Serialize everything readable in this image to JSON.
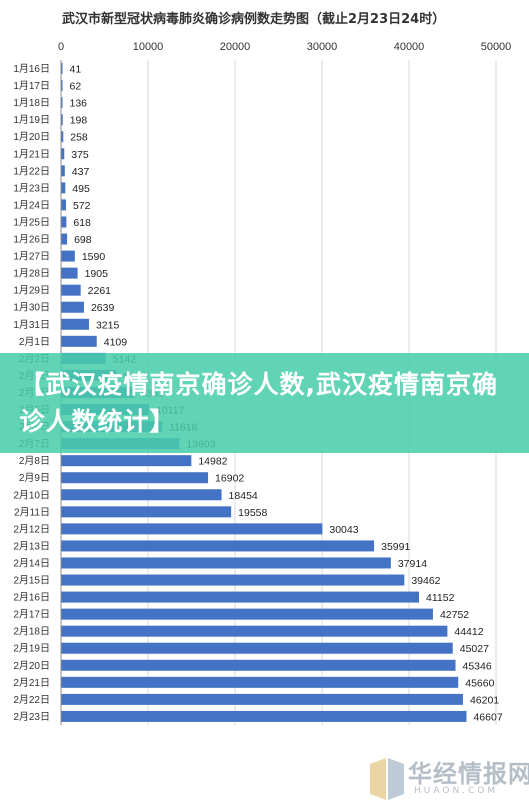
{
  "chart_data": {
    "type": "bar",
    "orientation": "horizontal",
    "title": "武汉市新型冠状病毒肺炎确诊病例数走势图（截止2月23日24时）",
    "xlim": [
      0,
      50000
    ],
    "x_ticks": [
      "0",
      "10000",
      "20000",
      "30000",
      "40000",
      "50000"
    ],
    "grid": true,
    "bar_color": "#4472c4",
    "categories": [
      "1月16日",
      "1月17日",
      "1月18日",
      "1月19日",
      "1月20日",
      "1月21日",
      "1月22日",
      "1月23日",
      "1月24日",
      "1月25日",
      "1月26日",
      "1月27日",
      "1月28日",
      "1月29日",
      "1月30日",
      "1月31日",
      "2月1日",
      "2月2日",
      "2月3日",
      "2月4日",
      "2月5日",
      "2月6日",
      "2月7日",
      "2月8日",
      "2月9日",
      "2月10日",
      "2月11日",
      "2月12日",
      "2月13日",
      "2月14日",
      "2月15日",
      "2月16日",
      "2月17日",
      "2月18日",
      "2月19日",
      "2月20日",
      "2月21日",
      "2月22日",
      "2月23日"
    ],
    "values": [
      41,
      62,
      136,
      198,
      258,
      375,
      437,
      495,
      572,
      618,
      698,
      1590,
      1905,
      2261,
      2639,
      3215,
      4109,
      5142,
      6384,
      8351,
      10117,
      11618,
      13603,
      14982,
      16902,
      18454,
      19558,
      30043,
      35991,
      37914,
      39462,
      41152,
      42752,
      44412,
      45027,
      45346,
      45660,
      46201,
      46607
    ],
    "value_labels": [
      "41",
      "62",
      "136",
      "198",
      "258",
      "375",
      "437",
      "495",
      "572",
      "618",
      "698",
      "1590",
      "1905",
      "2261",
      "2639",
      "3215",
      "4109",
      "5142",
      "6384",
      "8351",
      "10117",
      "11618",
      "13603",
      "14982",
      "16902",
      "18454",
      "19558",
      "30043",
      "35991",
      "37914",
      "39462",
      "41152",
      "42752",
      "44412",
      "45027",
      "45346",
      "45660",
      "46201",
      "46607"
    ]
  },
  "banner": {
    "text": "【武汉疫情南京确诊人数,武汉疫情南京确诊人数统计】",
    "color": "#48cdaa"
  },
  "watermark": {
    "name": "华经情报网",
    "url": "HUAON.COM"
  }
}
